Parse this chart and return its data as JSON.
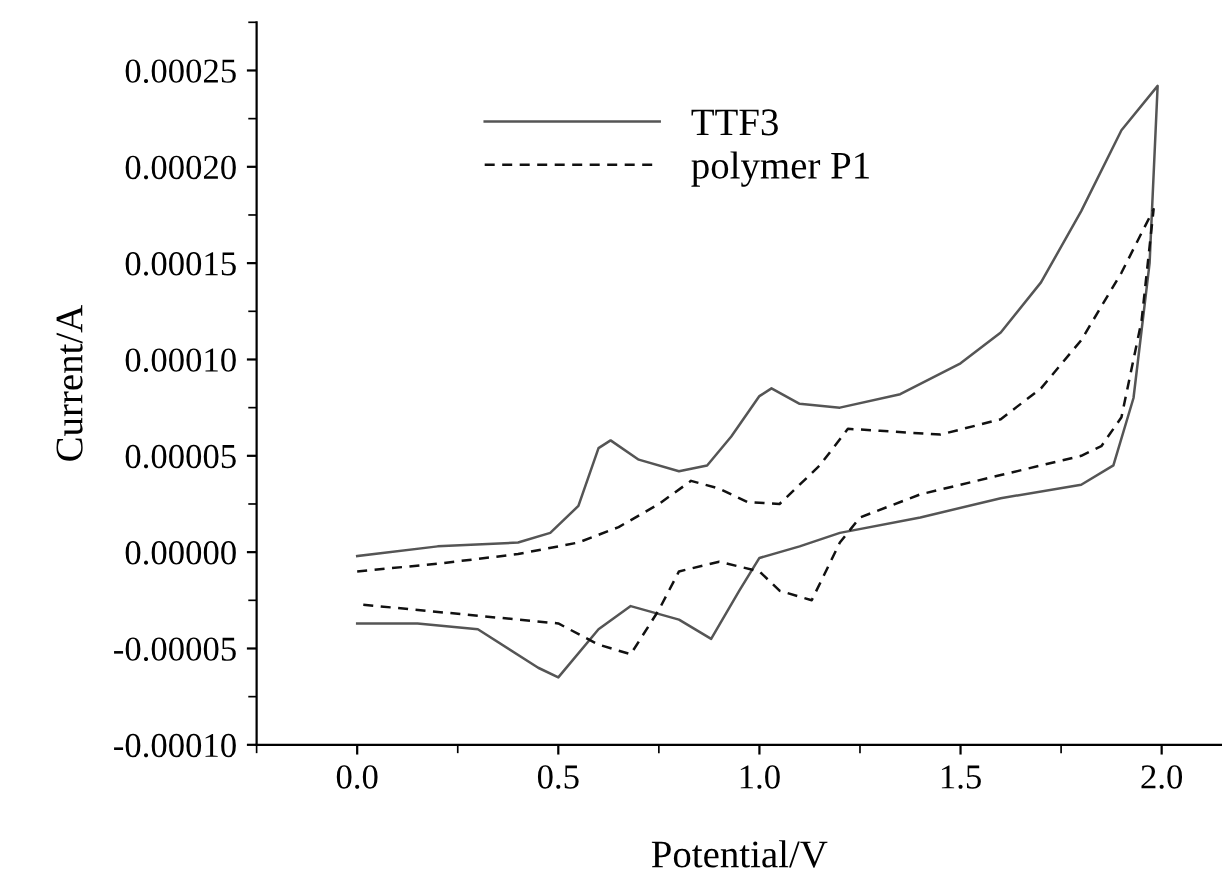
{
  "chart_data": {
    "type": "line",
    "xlabel": "Potential/V",
    "ylabel": "Current/A",
    "xlim": [
      -0.25,
      2.15
    ],
    "xticks": [
      {
        "value": 0,
        "label": "0.0"
      },
      0.5,
      {
        "value": 1,
        "label": "1.0"
      },
      1.5,
      {
        "value": 2,
        "label": "2.0"
      }
    ],
    "ylim": [
      -0.0001,
      0.000275
    ],
    "yticks": [
      {
        "value": -0.0001,
        "label": "-0.00010"
      },
      {
        "value": -5e-05,
        "label": "-0.00005"
      },
      {
        "value": 0,
        "label": "0.00000"
      },
      {
        "value": 5e-05,
        "label": "0.00005"
      },
      {
        "value": 0.0001,
        "label": "0.00010"
      },
      {
        "value": 0.00015,
        "label": "0.00015"
      },
      {
        "value": 0.0002,
        "label": "0.00020"
      },
      {
        "value": 0.00025,
        "label": "0.00025"
      }
    ],
    "grid": false,
    "legend": "top left",
    "marker": "none",
    "series": [
      {
        "name": "TTF3",
        "color": "#555555",
        "line_style": "solid",
        "x": [
          0,
          0.2,
          0.4,
          0.48,
          0.55,
          0.6,
          0.63,
          0.7,
          0.8,
          0.87,
          0.93,
          1.0,
          1.03,
          1.1,
          1.2,
          1.35,
          1.5,
          1.6,
          1.7,
          1.8,
          1.9,
          1.99,
          1.97,
          1.93,
          1.88,
          1.8,
          1.6,
          1.4,
          1.2,
          1.1,
          1.0,
          0.95,
          0.88,
          0.8,
          0.68,
          0.6,
          0.5,
          0.45,
          0.3,
          0.15,
          0
        ],
        "values": [
          -2e-06,
          3e-06,
          5e-06,
          1e-05,
          2.4e-05,
          5.4e-05,
          5.8e-05,
          4.8e-05,
          4.2e-05,
          4.5e-05,
          6e-05,
          8.1e-05,
          8.5e-05,
          7.7e-05,
          7.5e-05,
          8.2e-05,
          9.8e-05,
          0.000114,
          0.00014,
          0.000177,
          0.000219,
          0.000242,
          0.00015,
          8e-05,
          4.5e-05,
          3.5e-05,
          2.8e-05,
          1.8e-05,
          1e-05,
          3e-06,
          -3e-06,
          -2e-05,
          -4.5e-05,
          -3.5e-05,
          -2.8e-05,
          -4e-05,
          -6.5e-05,
          -6e-05,
          -4e-05,
          -3.7e-05,
          -3.7e-05
        ]
      },
      {
        "name": "polymer P1",
        "color": "#111111",
        "line_style": "dashed",
        "x": [
          0,
          0.2,
          0.4,
          0.55,
          0.65,
          0.75,
          0.83,
          0.9,
          0.97,
          1.05,
          1.15,
          1.22,
          1.3,
          1.45,
          1.6,
          1.7,
          1.8,
          1.9,
          1.98,
          1.95,
          1.9,
          1.85,
          1.8,
          1.6,
          1.4,
          1.25,
          1.2,
          1.13,
          1.05,
          1.0,
          0.9,
          0.8,
          0.75,
          0.68,
          0.6,
          0.5,
          0.3,
          0
        ],
        "values": [
          -1e-05,
          -6e-06,
          -1e-06,
          5e-06,
          1.3e-05,
          2.5e-05,
          3.7e-05,
          3.3e-05,
          2.6e-05,
          2.5e-05,
          4.5e-05,
          6.4e-05,
          6.3e-05,
          6.1e-05,
          6.9e-05,
          8.5e-05,
          0.00011,
          0.000145,
          0.000178,
          0.00012,
          7e-05,
          5.5e-05,
          5e-05,
          4e-05,
          3e-05,
          1.8e-05,
          5e-06,
          -2.5e-05,
          -2e-05,
          -1e-05,
          -5e-06,
          -1e-05,
          -3e-05,
          -5.3e-05,
          -4.8e-05,
          -3.7e-05,
          -3.3e-05,
          -2.7e-05
        ]
      }
    ]
  }
}
